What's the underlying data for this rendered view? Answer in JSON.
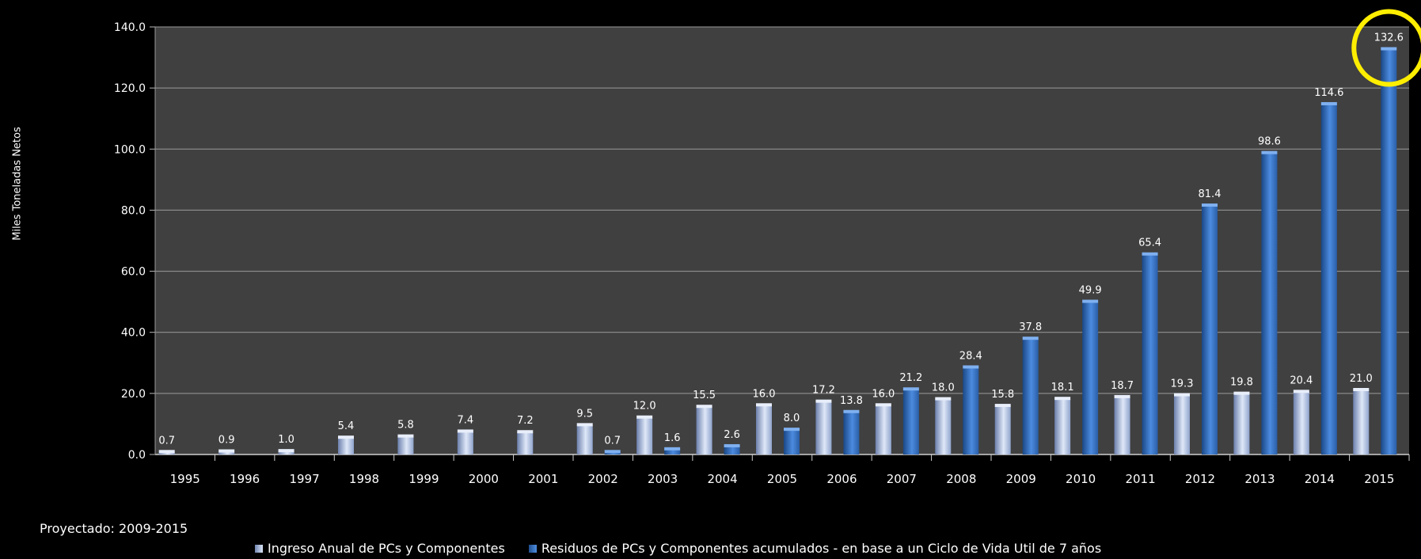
{
  "chart_data": {
    "type": "bar",
    "categories": [
      "1995",
      "1996",
      "1997",
      "1998",
      "1999",
      "2000",
      "2001",
      "2002",
      "2003",
      "2004",
      "2005",
      "2006",
      "2007",
      "2008",
      "2009",
      "2010",
      "2011",
      "2012",
      "2013",
      "2014",
      "2015"
    ],
    "series": [
      {
        "name": "Ingreso Anual de PCs y Componentes",
        "values": [
          0.7,
          0.9,
          1.0,
          5.4,
          5.8,
          7.4,
          7.2,
          9.5,
          12.0,
          15.5,
          16.0,
          17.2,
          16.0,
          18.0,
          15.8,
          18.1,
          18.7,
          19.3,
          19.8,
          20.4,
          21.0
        ],
        "labels": [
          "0.7",
          "0.9",
          "1.0",
          "5.4",
          "5.8",
          "7.4",
          "7.2",
          "9.5",
          "12.0",
          "15.5",
          "16.0",
          "17.2",
          "16.0",
          "18.0",
          "15.8",
          "18.1",
          "18.7",
          "19.3",
          "19.8",
          "20.4",
          "21.0"
        ],
        "color": "#b9c8e6"
      },
      {
        "name": "Residuos de PCs y Componentes acumulados - en base a un Ciclo de Vida Util de 7 años",
        "values": [
          null,
          null,
          null,
          null,
          null,
          null,
          null,
          0.7,
          1.6,
          2.6,
          8.0,
          13.8,
          21.2,
          28.4,
          37.8,
          49.9,
          65.4,
          81.4,
          98.6,
          114.6,
          132.6
        ],
        "labels": [
          "",
          "",
          "",
          "",
          "",
          "",
          "",
          "0.7",
          "1.6",
          "2.6",
          "8.0",
          "13.8",
          "21.2",
          "28.4",
          "37.8",
          "49.9",
          "65.4",
          "81.4",
          "98.6",
          "114.6",
          "132.6"
        ],
        "color": "#3a75c4"
      }
    ],
    "ylabel": "Miles Toneladas Netos",
    "ylim": [
      0,
      140
    ],
    "yticks": [
      "0.0",
      "20.0",
      "40.0",
      "60.0",
      "80.0",
      "100.0",
      "120.0",
      "140.0"
    ],
    "grid": true,
    "legend_position": "bottom",
    "highlight": {
      "category": "2015",
      "series": 1,
      "color": "#ffee00"
    },
    "plot_background": "#404040",
    "page_background": "#000000"
  },
  "note": "Proyectado: 2009-2015"
}
